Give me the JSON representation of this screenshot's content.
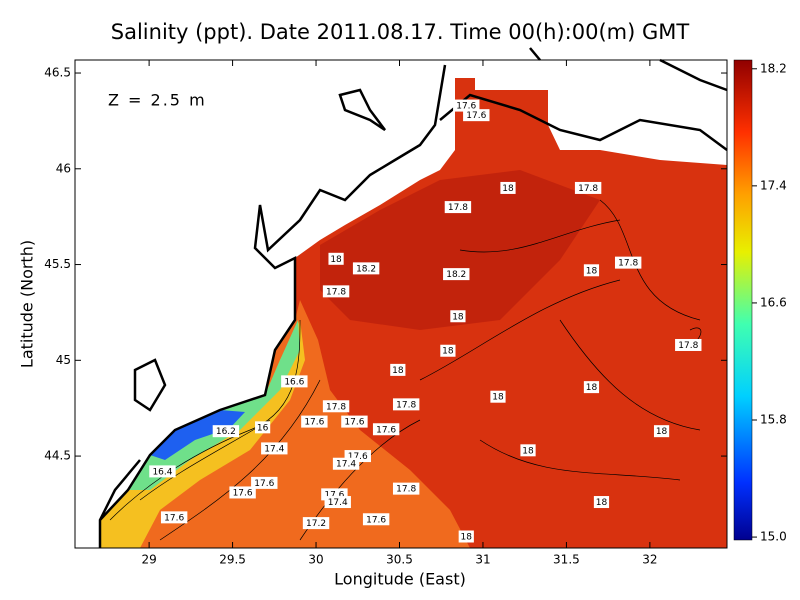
{
  "chart_data": {
    "type": "contour-map",
    "title": "Salinity (ppt). Date 2011.08.17. Time 00(h):00(m) GMT",
    "annotation": "Z = 2.5 m",
    "x_label": "Longitude (East)",
    "y_label": "Latitude (North)",
    "xlim": [
      28.556,
      32.462
    ],
    "ylim": [
      44.02,
      46.568
    ],
    "xticks": [
      29,
      29.5,
      30,
      30.5,
      31,
      31.5,
      32
    ],
    "yticks": [
      44.5,
      45,
      45.5,
      46,
      46.5
    ],
    "colorbar": {
      "lim": [
        14.98,
        18.26
      ],
      "ticks": [
        {
          "value": 15,
          "label": "15.0"
        },
        15.8,
        16.6,
        17.4,
        18.2
      ]
    },
    "contour_labels": [
      {
        "lon": 30.9,
        "lat": 46.33,
        "value": 17.6
      },
      {
        "lon": 30.96,
        "lat": 46.28,
        "value": 17.6
      },
      {
        "lon": 31.15,
        "lat": 45.9,
        "value": 18
      },
      {
        "lon": 31.63,
        "lat": 45.9,
        "value": 17.8
      },
      {
        "lon": 30.85,
        "lat": 45.8,
        "value": 17.8
      },
      {
        "lon": 30.12,
        "lat": 45.53,
        "value": 18
      },
      {
        "lon": 30.3,
        "lat": 45.48,
        "value": 18.2
      },
      {
        "lon": 30.84,
        "lat": 45.45,
        "value": 18.2
      },
      {
        "lon": 31.65,
        "lat": 45.47,
        "value": 18
      },
      {
        "lon": 31.87,
        "lat": 45.51,
        "value": 17.8
      },
      {
        "lon": 30.12,
        "lat": 45.36,
        "value": 17.8
      },
      {
        "lon": 30.85,
        "lat": 45.23,
        "value": 18
      },
      {
        "lon": 30.79,
        "lat": 45.05,
        "value": 18
      },
      {
        "lon": 32.23,
        "lat": 45.08,
        "value": 17.8
      },
      {
        "lon": 30.49,
        "lat": 44.95,
        "value": 18
      },
      {
        "lon": 29.87,
        "lat": 44.89,
        "value": 16.6
      },
      {
        "lon": 31.09,
        "lat": 44.81,
        "value": 18
      },
      {
        "lon": 31.65,
        "lat": 44.86,
        "value": 18
      },
      {
        "lon": 30.54,
        "lat": 44.77,
        "value": 17.8
      },
      {
        "lon": 30.12,
        "lat": 44.76,
        "value": 17.8
      },
      {
        "lon": 29.99,
        "lat": 44.68,
        "value": 17.6
      },
      {
        "lon": 30.23,
        "lat": 44.68,
        "value": 17.6
      },
      {
        "lon": 30.42,
        "lat": 44.64,
        "value": 17.6
      },
      {
        "lon": 29.68,
        "lat": 44.65,
        "value": 16
      },
      {
        "lon": 32.07,
        "lat": 44.63,
        "value": 18
      },
      {
        "lon": 29.46,
        "lat": 44.63,
        "value": 16.2
      },
      {
        "lon": 29.75,
        "lat": 44.54,
        "value": 17.4
      },
      {
        "lon": 31.27,
        "lat": 44.53,
        "value": 18
      },
      {
        "lon": 30.25,
        "lat": 44.5,
        "value": 17.6
      },
      {
        "lon": 30.18,
        "lat": 44.46,
        "value": 17.4
      },
      {
        "lon": 29.08,
        "lat": 44.42,
        "value": 16.4
      },
      {
        "lon": 29.69,
        "lat": 44.36,
        "value": 17.6
      },
      {
        "lon": 30.54,
        "lat": 44.33,
        "value": 17.8
      },
      {
        "lon": 29.56,
        "lat": 44.31,
        "value": 17.6
      },
      {
        "lon": 30.11,
        "lat": 44.3,
        "value": 17.6
      },
      {
        "lon": 30.13,
        "lat": 44.26,
        "value": 17.4
      },
      {
        "lon": 31.71,
        "lat": 44.26,
        "value": 18
      },
      {
        "lon": 29.15,
        "lat": 44.18,
        "value": 17.6
      },
      {
        "lon": 30.36,
        "lat": 44.17,
        "value": 17.6
      },
      {
        "lon": 30.0,
        "lat": 44.15,
        "value": 17.2
      },
      {
        "lon": 30.9,
        "lat": 44.08,
        "value": 18
      }
    ]
  }
}
